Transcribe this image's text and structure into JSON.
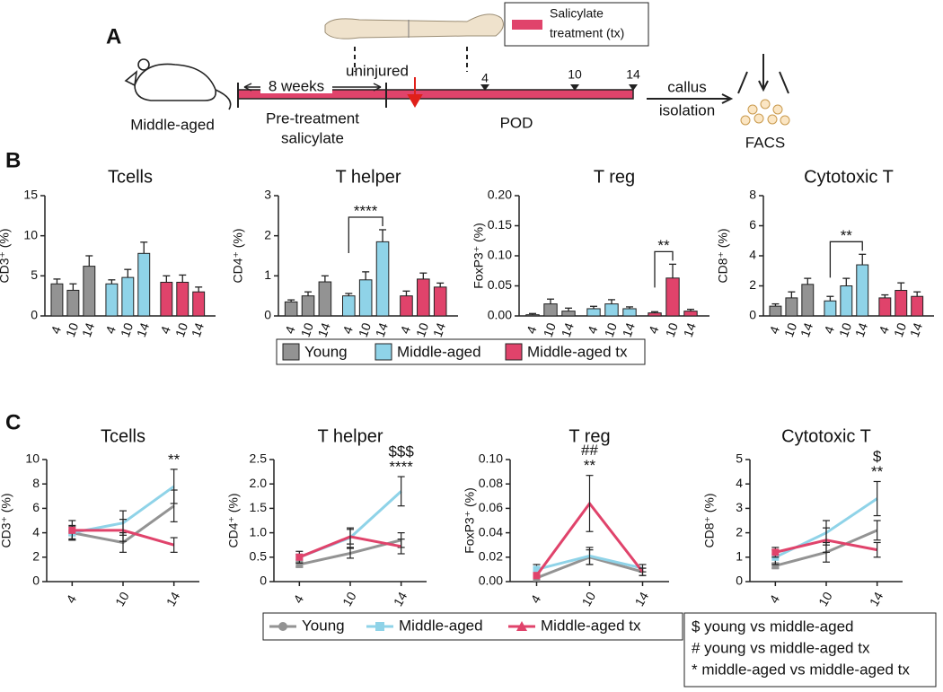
{
  "panel_a": {
    "label": "A",
    "mouse": "Middle-aged",
    "duration": "8 weeks",
    "pretreatment": [
      "Pre-treatment",
      "salicylate"
    ],
    "injury": "uninjured",
    "days": [
      "4",
      "10",
      "14"
    ],
    "timeline": "POD",
    "isolation": [
      "callus",
      "isolation"
    ],
    "assay": "FACS",
    "legend": [
      "Salicylate",
      "treatment (tx)"
    ]
  },
  "chart_data": [
    {
      "type": "bar",
      "label": "B",
      "categories": [
        "4",
        "10",
        "14"
      ],
      "series": [
        {
          "name": "Young",
          "color": "#939393"
        },
        {
          "name": "Middle-aged",
          "color": "#8fd3e8"
        },
        {
          "name": "Middle-aged tx",
          "color": "#e0436b"
        }
      ],
      "charts": [
        {
          "title": "Tcells",
          "ylabel": "CD3⁺ (%)",
          "ylim": [
            0,
            15
          ],
          "yticks": [
            0,
            5,
            10,
            15
          ],
          "values": [
            [
              4.0,
              3.2,
              6.2
            ],
            [
              4.0,
              4.8,
              7.8
            ],
            [
              4.2,
              4.2,
              3.0
            ]
          ],
          "errors": [
            [
              0.6,
              0.8,
              1.3
            ],
            [
              0.5,
              1.0,
              1.4
            ],
            [
              0.8,
              0.9,
              0.6
            ]
          ],
          "annotations": []
        },
        {
          "title": "T helper",
          "ylabel": "CD4⁺ (%)",
          "ylim": [
            0,
            3
          ],
          "yticks": [
            0,
            1,
            2,
            3
          ],
          "values": [
            [
              0.35,
              0.5,
              0.85
            ],
            [
              0.5,
              0.9,
              1.85
            ],
            [
              0.5,
              0.92,
              0.72
            ]
          ],
          "errors": [
            [
              0.05,
              0.1,
              0.15
            ],
            [
              0.06,
              0.2,
              0.3
            ],
            [
              0.12,
              0.15,
              0.1
            ]
          ],
          "annotations": [
            "****"
          ]
        },
        {
          "title": "T reg",
          "ylabel": "FoxP3⁺ (%)",
          "ylim": [
            0,
            0.2
          ],
          "yticks": [
            {
              "value": 0,
              "label": "0.00"
            },
            {
              "value": 0.05,
              "label": "0.05"
            },
            {
              "value": 0.1,
              "label": "0.10"
            },
            {
              "value": 0.15,
              "label": "0.15"
            },
            {
              "value": 0.2,
              "label": "0.20"
            }
          ],
          "values": [
            [
              0.002,
              0.02,
              0.008
            ],
            [
              0.012,
              0.02,
              0.012
            ],
            [
              0.005,
              0.063,
              0.008
            ]
          ],
          "errors": [
            [
              0.002,
              0.008,
              0.005
            ],
            [
              0.004,
              0.007,
              0.003
            ],
            [
              0.002,
              0.023,
              0.003
            ]
          ],
          "annotations": [
            "**"
          ]
        },
        {
          "title": "Cytotoxic T",
          "ylabel": "CD8⁺ (%)",
          "ylim": [
            0,
            8
          ],
          "yticks": [
            0,
            2,
            4,
            6,
            8
          ],
          "values": [
            [
              0.65,
              1.2,
              2.1
            ],
            [
              1.0,
              2.0,
              3.4
            ],
            [
              1.2,
              1.7,
              1.3
            ]
          ],
          "errors": [
            [
              0.15,
              0.4,
              0.4
            ],
            [
              0.3,
              0.5,
              0.7
            ],
            [
              0.2,
              0.5,
              0.3
            ]
          ],
          "annotations": [
            "**"
          ]
        }
      ]
    },
    {
      "type": "line",
      "label": "C",
      "categories": [
        "4",
        "10",
        "14"
      ],
      "series": [
        {
          "name": "Young",
          "color": "#939393"
        },
        {
          "name": "Middle-aged",
          "color": "#8fd3e8"
        },
        {
          "name": "Middle-aged tx",
          "color": "#e0436b"
        }
      ],
      "key": [
        "$ young vs middle-aged",
        "# young vs middle-aged tx",
        "* middle-aged vs middle-aged tx"
      ],
      "charts": [
        {
          "title": "Tcells",
          "ylabel": "CD3⁺ (%)",
          "ylim": [
            0,
            10
          ],
          "yticks": [
            0,
            2,
            4,
            6,
            8,
            10
          ],
          "values": [
            [
              4.0,
              3.2,
              6.2
            ],
            [
              4.0,
              4.8,
              7.8
            ],
            [
              4.2,
              4.2,
              3.0
            ]
          ],
          "errors": [
            [
              0.6,
              0.8,
              1.3
            ],
            [
              0.5,
              1.0,
              1.4
            ],
            [
              0.8,
              0.9,
              0.6
            ]
          ],
          "annotations": [
            "**"
          ]
        },
        {
          "title": "T helper",
          "ylabel": "CD4⁺ (%)",
          "ylim": [
            0,
            2.5
          ],
          "yticks": [
            0,
            0.5,
            {
              "value": 1,
              "label": "1.0"
            },
            1.5,
            {
              "value": 2,
              "label": "2.0"
            },
            2.5
          ],
          "values": [
            [
              0.35,
              0.58,
              0.85
            ],
            [
              0.5,
              0.9,
              1.85
            ],
            [
              0.5,
              0.92,
              0.72
            ]
          ],
          "errors": [
            [
              0.05,
              0.1,
              0.15
            ],
            [
              0.06,
              0.2,
              0.3
            ],
            [
              0.12,
              0.15,
              0.15
            ]
          ],
          "annotations": [
            "$$$",
            "****"
          ]
        },
        {
          "title": "T reg",
          "ylabel": "FoxP3⁺ (%)",
          "ylim": [
            0,
            0.1
          ],
          "yticks": [
            {
              "value": 0,
              "label": "0.00"
            },
            {
              "value": 0.02,
              "label": "0.02"
            },
            {
              "value": 0.04,
              "label": "0.04"
            },
            {
              "value": 0.06,
              "label": "0.06"
            },
            {
              "value": 0.08,
              "label": "0.08"
            },
            {
              "value": 0.1,
              "label": "0.10"
            }
          ],
          "values": [
            [
              0.003,
              0.02,
              0.008
            ],
            [
              0.01,
              0.021,
              0.011
            ],
            [
              0.005,
              0.064,
              0.008
            ]
          ],
          "errors": [
            [
              0.003,
              0.006,
              0.003
            ],
            [
              0.004,
              0.007,
              0.003
            ],
            [
              0.002,
              0.023,
              0.003
            ]
          ],
          "annotations": [
            "##",
            "**"
          ]
        },
        {
          "title": "Cytotoxic T",
          "ylabel": "CD8⁺ (%)",
          "ylim": [
            0,
            5
          ],
          "yticks": [
            0,
            1,
            2,
            3,
            4,
            5
          ],
          "values": [
            [
              0.65,
              1.2,
              2.1
            ],
            [
              1.0,
              2.0,
              3.4
            ],
            [
              1.2,
              1.7,
              1.3
            ]
          ],
          "errors": [
            [
              0.1,
              0.4,
              0.4
            ],
            [
              0.3,
              0.5,
              0.7
            ],
            [
              0.2,
              0.5,
              0.3
            ]
          ],
          "annotations": [
            "$",
            "**"
          ]
        }
      ]
    }
  ]
}
